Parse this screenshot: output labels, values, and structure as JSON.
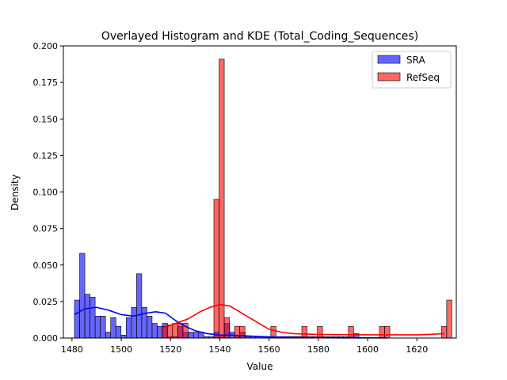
{
  "chart_data": {
    "type": "histogram",
    "title": "Overlayed Histogram and KDE (Total_Coding_Sequences)",
    "xlabel": "Value",
    "ylabel": "Density",
    "xlim": [
      1476.5,
      1636
    ],
    "ylim": [
      0,
      0.2
    ],
    "xticks": [
      "1480",
      "1500",
      "1520",
      "1540",
      "1560",
      "1580",
      "1600",
      "1620"
    ],
    "yticks": [
      "0.000",
      "0.025",
      "0.050",
      "0.075",
      "0.100",
      "0.125",
      "0.150",
      "0.175",
      "0.200"
    ],
    "grid": false,
    "legend_position": "top-right",
    "series": [
      {
        "name": "SRA",
        "color": "#0000ff",
        "bin_start": 1481.0,
        "bin_width": 2.1,
        "densities": [
          0.026,
          0.058,
          0.03,
          0.028,
          0.015,
          0.015,
          0.004,
          0.014,
          0.008,
          0.002,
          0.014,
          0.021,
          0.044,
          0.021,
          0.015,
          0.01,
          0.008,
          0.01,
          0.001,
          0.001,
          0.008,
          0.004,
          0.004,
          0.004,
          0.004,
          0.001,
          0.001,
          0.004,
          0.001,
          0.01,
          0.004,
          0.001,
          0.004,
          0.001,
          0.001,
          0.001,
          0.001,
          0.001,
          0.001,
          0.001,
          0.001,
          0.001,
          0.001,
          0.001,
          0.001,
          0.001,
          0.001,
          0.001,
          0.001,
          0.001,
          0.001,
          0.001,
          0.001,
          0.001,
          0.003
        ],
        "kde": [
          [
            1481,
            0.016
          ],
          [
            1485,
            0.02
          ],
          [
            1490,
            0.021
          ],
          [
            1495,
            0.019
          ],
          [
            1500,
            0.016
          ],
          [
            1505,
            0.015
          ],
          [
            1510,
            0.017
          ],
          [
            1514,
            0.018
          ],
          [
            1518,
            0.017
          ],
          [
            1522,
            0.012
          ],
          [
            1526,
            0.008
          ],
          [
            1530,
            0.005
          ],
          [
            1535,
            0.003
          ],
          [
            1540,
            0.002
          ],
          [
            1545,
            0.002
          ],
          [
            1550,
            0.0015
          ],
          [
            1560,
            0.0008
          ],
          [
            1570,
            0.0004
          ],
          [
            1580,
            0.0002
          ],
          [
            1590,
            0.0001
          ],
          [
            1600,
            0.0001
          ],
          [
            1608,
            0.0001
          ]
        ]
      },
      {
        "name": "RefSeq",
        "color": "#ff0000",
        "bin_start": 1516.6,
        "bin_width": 2.1,
        "densities": [
          0.008,
          0.009,
          0.01,
          0.01,
          0.01,
          0,
          0,
          0,
          0,
          0,
          0.095,
          0.191,
          0.014,
          0,
          0.008,
          0.008,
          0,
          0,
          0,
          0,
          0,
          0.008,
          0,
          0,
          0,
          0,
          0,
          0.008,
          0,
          0,
          0.008,
          0,
          0,
          0,
          0,
          0,
          0.008,
          0,
          0,
          0,
          0,
          0,
          0.008,
          0.008,
          0,
          0,
          0,
          0,
          0,
          0,
          0,
          0,
          0,
          0,
          0.008,
          0.026
        ],
        "kde": [
          [
            1517,
            0.007
          ],
          [
            1522,
            0.01
          ],
          [
            1527,
            0.013
          ],
          [
            1532,
            0.018
          ],
          [
            1536,
            0.021
          ],
          [
            1540,
            0.023
          ],
          [
            1544,
            0.022
          ],
          [
            1548,
            0.018
          ],
          [
            1552,
            0.014
          ],
          [
            1556,
            0.01
          ],
          [
            1560,
            0.006
          ],
          [
            1565,
            0.004
          ],
          [
            1570,
            0.003
          ],
          [
            1580,
            0.0025
          ],
          [
            1590,
            0.0023
          ],
          [
            1600,
            0.0022
          ],
          [
            1610,
            0.0022
          ],
          [
            1620,
            0.0022
          ],
          [
            1625,
            0.0025
          ],
          [
            1631,
            0.003
          ]
        ]
      }
    ]
  }
}
